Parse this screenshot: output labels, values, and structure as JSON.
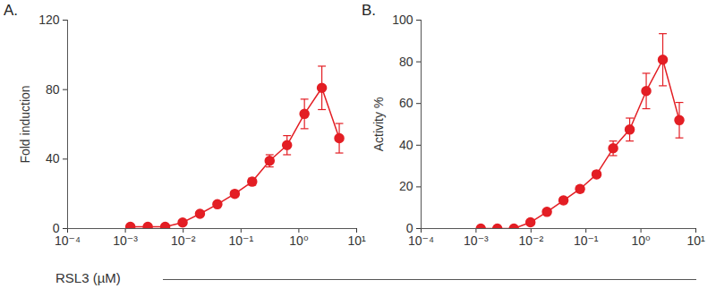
{
  "chart_data": [
    {
      "type": "line",
      "title": "A.",
      "ylabel": "Fold induction",
      "xlabel": "RSL3 (µM)",
      "x": [
        0.00122,
        0.00244,
        0.00488,
        0.00977,
        0.0195,
        0.039,
        0.078,
        0.156,
        0.3125,
        0.625,
        1.25,
        2.5,
        5
      ],
      "values": [
        1,
        1,
        1,
        3.5,
        8.5,
        14,
        20,
        27,
        39,
        48,
        66,
        81,
        52
      ],
      "errors": [
        0.5,
        0.5,
        0.5,
        0.5,
        1,
        1,
        1.5,
        2,
        3.5,
        5.5,
        8.5,
        12.5,
        8.5
      ],
      "color": "#e31e24",
      "marker": "circle",
      "log": "x",
      "grid": false,
      "xlim": [
        0.0001,
        10
      ],
      "xticks": [
        {
          "value": 0.0001,
          "label": "10⁻⁴"
        },
        {
          "value": 0.001,
          "label": "10⁻³"
        },
        {
          "value": 0.01,
          "label": "10⁻²"
        },
        {
          "value": 0.1,
          "label": "10⁻¹"
        },
        {
          "value": 1,
          "label": "10⁰"
        },
        {
          "value": 10,
          "label": "10¹"
        }
      ],
      "ylim": [
        0,
        120
      ],
      "yticks": [
        0,
        40,
        80,
        120
      ]
    },
    {
      "type": "line",
      "title": "B.",
      "ylabel": "Activity %",
      "x": [
        0.00122,
        0.00244,
        0.00488,
        0.00977,
        0.0195,
        0.039,
        0.078,
        0.156,
        0.3125,
        0.625,
        1.25,
        2.5,
        5
      ],
      "values": [
        0,
        0,
        0,
        3,
        8,
        13.5,
        19,
        26,
        38.5,
        47.5,
        66,
        81,
        52
      ],
      "errors": [
        0,
        0,
        0,
        0.5,
        0.5,
        1.5,
        1.5,
        1.5,
        3.5,
        5.5,
        8.5,
        12.5,
        8.5
      ],
      "color": "#e31e24",
      "marker": "circle",
      "log": "x",
      "grid": false,
      "xlim": [
        0.0001,
        10
      ],
      "xticks": [
        {
          "value": 0.0001,
          "label": "10⁻⁴"
        },
        {
          "value": 0.001,
          "label": "10⁻³"
        },
        {
          "value": 0.01,
          "label": "10⁻²"
        },
        {
          "value": 0.1,
          "label": "10⁻¹"
        },
        {
          "value": 1,
          "label": "10⁰"
        },
        {
          "value": 10,
          "label": "10¹"
        }
      ],
      "ylim": [
        0,
        100
      ],
      "yticks": [
        0,
        20,
        40,
        60,
        80,
        100
      ]
    }
  ]
}
